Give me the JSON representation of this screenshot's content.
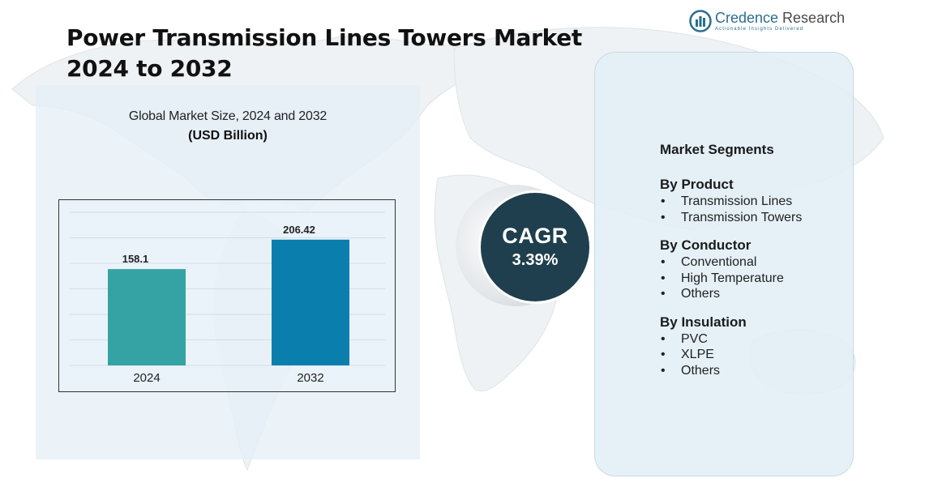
{
  "title_line1": "Power Transmission Lines Towers Market",
  "title_line2": "2024 to 2032",
  "logo": {
    "name_part1": "Credence",
    "name_part2": " Research",
    "tagline": "Actionable Insights Delivered"
  },
  "chart_data": {
    "type": "bar",
    "title": "Global Market Size, 2024 and 2032",
    "subtitle": "(USD Billion)",
    "categories": [
      "2024",
      "2032"
    ],
    "values": [
      158.1,
      206.42
    ],
    "value_labels": [
      "158.1",
      "206.42"
    ],
    "colors": [
      "#35a3a3",
      "#0a7fad"
    ],
    "ylim": [
      0,
      250
    ],
    "grid": true,
    "legend": "none"
  },
  "cagr": {
    "label": "CAGR",
    "value": "3.39%"
  },
  "segments": {
    "heading": "Market Segments",
    "groups": [
      {
        "title": "By Product",
        "items": [
          "Transmission Lines",
          "Transmission Towers"
        ]
      },
      {
        "title": "By Conductor",
        "items": [
          "Conventional",
          "High Temperature",
          "Others"
        ]
      },
      {
        "title": "By Insulation",
        "items": [
          "PVC",
          "XLPE",
          "Others"
        ]
      }
    ]
  },
  "colors": {
    "panel_bg": "#e5f0f7",
    "cagr_bg": "#1f3f4e",
    "brand": "#2a6e8e"
  }
}
